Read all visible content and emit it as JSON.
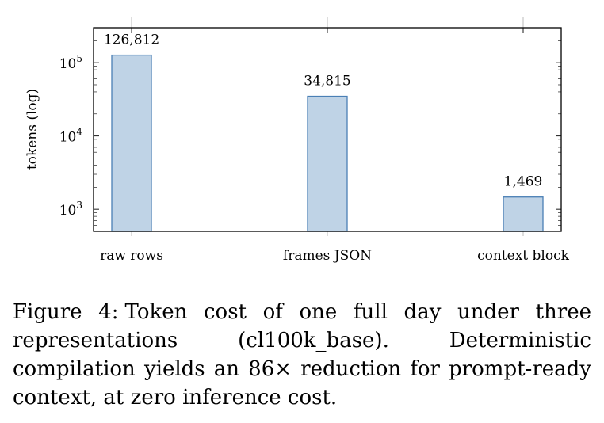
{
  "chart_data": {
    "type": "bar",
    "categories": [
      "raw rows",
      "frames JSON",
      "context block"
    ],
    "values": [
      126812,
      34815,
      1469
    ],
    "data_labels": [
      "126,812",
      "34,815",
      "1,469"
    ],
    "ylabel": "tokens (log)",
    "yscale": "log",
    "ylim": [
      500,
      300000
    ],
    "yticks": [
      {
        "value": 1000,
        "base": "10",
        "exp": "3"
      },
      {
        "value": 10000,
        "base": "10",
        "exp": "4"
      },
      {
        "value": 100000,
        "base": "10",
        "exp": "5"
      }
    ],
    "bar_fill": "#bfd3e6",
    "bar_stroke": "#4a7fb5",
    "grid": false
  },
  "caption": {
    "label": "Figure 4:",
    "text": "Token cost of one full day under three representations (cl100k_base). Deterministic compilation yields an 86× reduction for prompt-ready context, at zero inference cost."
  }
}
